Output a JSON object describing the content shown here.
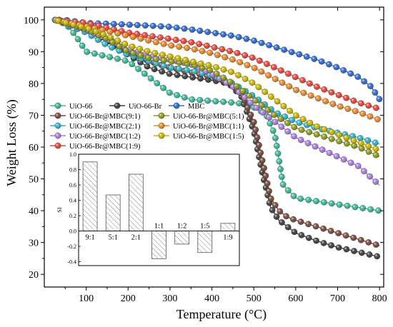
{
  "chart_data": [
    {
      "type": "line",
      "xlabel": "Temperature (°C)",
      "ylabel": "Weight Loss (%)",
      "xlim": [
        0,
        810
      ],
      "ylim": [
        16,
        104
      ],
      "x_ticks": [
        "100",
        "200",
        "300",
        "400",
        "500",
        "600",
        "700",
        "800"
      ],
      "y_ticks": [
        "20",
        "30",
        "40",
        "50",
        "60",
        "70",
        "80",
        "90",
        "100"
      ],
      "legend_position": "middle-left",
      "series": [
        {
          "name": "UiO-66",
          "color": "#3bb896",
          "x": [
            25,
            50,
            75,
            100,
            150,
            200,
            250,
            300,
            350,
            400,
            450,
            480,
            510,
            530,
            550,
            570,
            600,
            650,
            700,
            750,
            800
          ],
          "y": [
            100,
            99,
            95,
            90,
            88.5,
            87,
            82,
            77,
            75,
            74.5,
            74,
            73.5,
            72,
            70,
            64,
            48,
            44,
            43,
            42,
            41,
            40
          ]
        },
        {
          "name": "UiO-66-Br",
          "color": "#43413f",
          "x": [
            25,
            50,
            75,
            100,
            150,
            200,
            250,
            300,
            350,
            400,
            440,
            470,
            500,
            520,
            540,
            560,
            580,
            600,
            650,
            700,
            750,
            800
          ],
          "y": [
            100,
            99.5,
            98.5,
            97,
            93,
            89,
            85,
            83,
            82,
            81,
            80,
            76,
            65,
            52,
            41,
            37,
            35,
            33,
            30.5,
            28.5,
            27,
            25.5
          ]
        },
        {
          "name": "MBC",
          "color": "#2f69d4",
          "x": [
            25,
            50,
            100,
            150,
            200,
            250,
            300,
            350,
            400,
            450,
            500,
            550,
            600,
            650,
            700,
            750,
            780,
            800
          ],
          "y": [
            100,
            100,
            99,
            98.8,
            98.5,
            98.2,
            97.8,
            97,
            96,
            95,
            93.5,
            91.5,
            89.5,
            87.5,
            85,
            82,
            79,
            75
          ]
        },
        {
          "name": "UiO-66-Br@MBC(9:1)",
          "color": "#7a4a3e",
          "x": [
            25,
            50,
            75,
            100,
            150,
            200,
            250,
            300,
            350,
            400,
            440,
            470,
            500,
            520,
            540,
            560,
            580,
            600,
            650,
            700,
            750,
            800
          ],
          "y": [
            100,
            99.5,
            98.5,
            97,
            94,
            90,
            87,
            85,
            83.5,
            82,
            80.5,
            77,
            68,
            56,
            44,
            40,
            38,
            37,
            35,
            33,
            31,
            29
          ]
        },
        {
          "name": "UiO-66-Br@MBC(2:1)",
          "color": "#2fb3cc",
          "x": [
            25,
            100,
            150,
            200,
            250,
            300,
            350,
            400,
            450,
            500,
            550,
            600,
            650,
            700,
            750,
            800
          ],
          "y": [
            100,
            96,
            92,
            89,
            87,
            85,
            84,
            82.5,
            80,
            76,
            71,
            68,
            66,
            64.5,
            63,
            61
          ]
        },
        {
          "name": "UiO-66-Br@MBC(1:2)",
          "color": "#a97de0",
          "x": [
            25,
            100,
            150,
            200,
            250,
            300,
            350,
            400,
            450,
            500,
            550,
            600,
            650,
            700,
            750,
            800
          ],
          "y": [
            100,
            97,
            94,
            91,
            89,
            87.5,
            86,
            83,
            79,
            73,
            68,
            63,
            60,
            57,
            54,
            48
          ]
        },
        {
          "name": "UiO-66-Br@MBC(1:9)",
          "color": "#e8453a",
          "x": [
            25,
            100,
            150,
            200,
            250,
            300,
            350,
            400,
            450,
            500,
            550,
            600,
            650,
            700,
            750,
            800
          ],
          "y": [
            100,
            99,
            97.5,
            96,
            95,
            94,
            93,
            91.5,
            90,
            88,
            85,
            82,
            79,
            76.5,
            74,
            72
          ]
        },
        {
          "name": "UiO-66-Br@MBC(5:1)",
          "color": "#8c9a1e",
          "x": [
            25,
            100,
            150,
            200,
            250,
            300,
            350,
            400,
            450,
            500,
            550,
            600,
            650,
            700,
            750,
            800
          ],
          "y": [
            100,
            97,
            94,
            90,
            88,
            87,
            86,
            84,
            80,
            75,
            70,
            66,
            64,
            62,
            60,
            57
          ]
        },
        {
          "name": "UiO-66-Br@MBC(1:1)",
          "color": "#e8862a",
          "x": [
            25,
            100,
            150,
            200,
            250,
            300,
            350,
            400,
            450,
            500,
            550,
            600,
            650,
            700,
            750,
            800
          ],
          "y": [
            100,
            98,
            96.5,
            95,
            93.5,
            92,
            91,
            89.5,
            87.5,
            85,
            81.5,
            78,
            75.5,
            73,
            71,
            68.5
          ]
        },
        {
          "name": "UiO-66-Br@MBC(1:5)",
          "color": "#c8b400",
          "x": [
            25,
            100,
            150,
            200,
            250,
            300,
            350,
            400,
            450,
            500,
            550,
            600,
            650,
            700,
            750,
            800
          ],
          "y": [
            100,
            97.5,
            95,
            92,
            90,
            88.5,
            87,
            85.5,
            83.5,
            80,
            75,
            70,
            66.5,
            64,
            61.5,
            59
          ]
        }
      ]
    },
    {
      "type": "bar",
      "ylabel": "SI",
      "ylim": [
        -0.45,
        1.0
      ],
      "y_ticks": [
        "-0.4",
        "-0.2",
        "0.0",
        "0.2",
        "0.4",
        "0.6",
        "0.8",
        "1.0"
      ],
      "categories": [
        "9:1",
        "5:1",
        "2:1",
        "1:1",
        "1:2",
        "1:5",
        "1:9"
      ],
      "values": [
        0.9,
        0.47,
        0.74,
        -0.36,
        -0.17,
        -0.28,
        0.1
      ],
      "bar_fill": "hatched"
    }
  ]
}
